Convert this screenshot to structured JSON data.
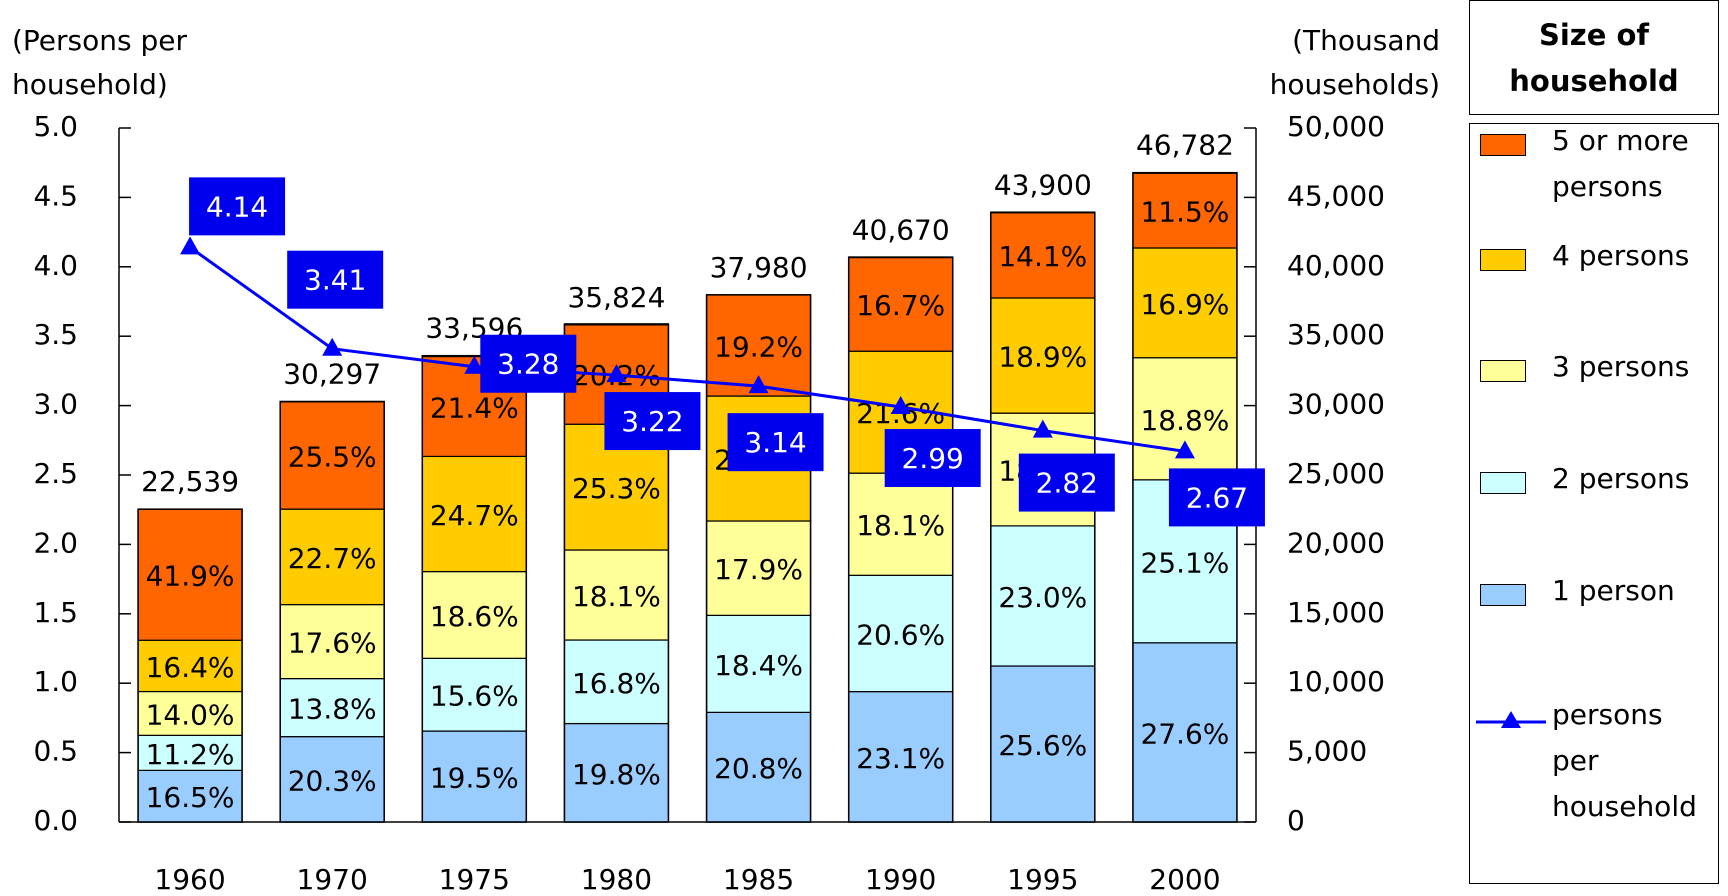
{
  "chart_data": {
    "type": "stacked_percent_bar_line",
    "y_label": [
      "(Persons per",
      "household)"
    ],
    "y2_label": [
      "(Thousand",
      "households)"
    ],
    "legend_title": "Size of household",
    "categories": [
      "1960",
      "1970",
      "1975",
      "1980",
      "1985",
      "1990",
      "1995",
      "2000"
    ],
    "ylim": [
      0,
      5
    ],
    "yticks": [
      {
        "value": 0,
        "label": "0.0"
      },
      0.5,
      {
        "value": 1,
        "label": "1.0"
      },
      1.5,
      {
        "value": 2,
        "label": "2.0"
      },
      2.5,
      {
        "value": 3,
        "label": "3.0"
      },
      3.5,
      {
        "value": 4,
        "label": "4.0"
      },
      4.5,
      {
        "value": 5,
        "label": "5.0"
      }
    ],
    "y2lim": [
      0,
      50000
    ],
    "y2ticks": [
      0,
      {
        "value": 5000,
        "label": "5,000"
      },
      {
        "value": 10000,
        "label": "10,000"
      },
      {
        "value": 15000,
        "label": "15,000"
      },
      {
        "value": 20000,
        "label": "20,000"
      },
      {
        "value": 25000,
        "label": "25,000"
      },
      {
        "value": 30000,
        "label": "30,000"
      },
      {
        "value": 35000,
        "label": "35,000"
      },
      {
        "value": 40000,
        "label": "40,000"
      },
      {
        "value": 45000,
        "label": "45,000"
      },
      {
        "value": 50000,
        "label": "50,000"
      }
    ],
    "totals": {
      "axis": "y2",
      "values": [
        22539,
        30297,
        33596,
        35824,
        37980,
        40670,
        43900,
        46782
      ],
      "value_labels": [
        "22,539",
        "30,297",
        "33,596",
        "35,824",
        "37,980",
        "40,670",
        "43,900",
        "46,782"
      ]
    },
    "series": [
      {
        "name": "1 person",
        "color": "#99ccff",
        "values": [
          16.5,
          20.3,
          19.5,
          19.8,
          20.8,
          23.1,
          25.6,
          27.6
        ],
        "value_labels": [
          "16.5%",
          "20.3%",
          "19.5%",
          "19.8%",
          "20.8%",
          "23.1%",
          "25.6%",
          "27.6%"
        ]
      },
      {
        "name": "2 persons",
        "color": "#ccffff",
        "values": [
          11.2,
          13.8,
          15.6,
          16.8,
          18.4,
          20.6,
          23.0,
          25.1
        ],
        "value_labels": [
          "11.2%",
          "13.8%",
          "15.6%",
          "16.8%",
          "18.4%",
          "20.6%",
          "23.0%",
          "25.1%"
        ]
      },
      {
        "name": "3 persons",
        "color": "#ffff99",
        "values": [
          14.0,
          17.6,
          18.6,
          18.1,
          17.9,
          18.1,
          18.5,
          18.8
        ],
        "value_labels": [
          "14.0%",
          "17.6%",
          "18.6%",
          "18.1%",
          "17.9%",
          "18.1%",
          "18.5%",
          "18.8%"
        ]
      },
      {
        "name": "4 persons",
        "color": "#ffcc00",
        "values": [
          16.4,
          22.7,
          24.7,
          25.3,
          23.7,
          21.6,
          18.9,
          16.9
        ],
        "value_labels": [
          "16.4%",
          "22.7%",
          "24.7%",
          "25.3%",
          "23.7%",
          "21.6%",
          "18.9%",
          "16.9%"
        ]
      },
      {
        "name": "5 or more persons",
        "color": "#ff6600",
        "values": [
          41.9,
          25.5,
          21.4,
          20.2,
          19.2,
          16.7,
          14.1,
          11.5
        ],
        "value_labels": [
          "41.9%",
          "25.5%",
          "21.4%",
          "20.2%",
          "19.2%",
          "16.7%",
          "14.1%",
          "11.5%"
        ]
      }
    ],
    "line": {
      "name": "persons per household",
      "color": "#0000ff",
      "axis": "y",
      "values": [
        4.14,
        3.41,
        3.28,
        3.22,
        3.14,
        2.99,
        2.82,
        2.67
      ]
    }
  }
}
